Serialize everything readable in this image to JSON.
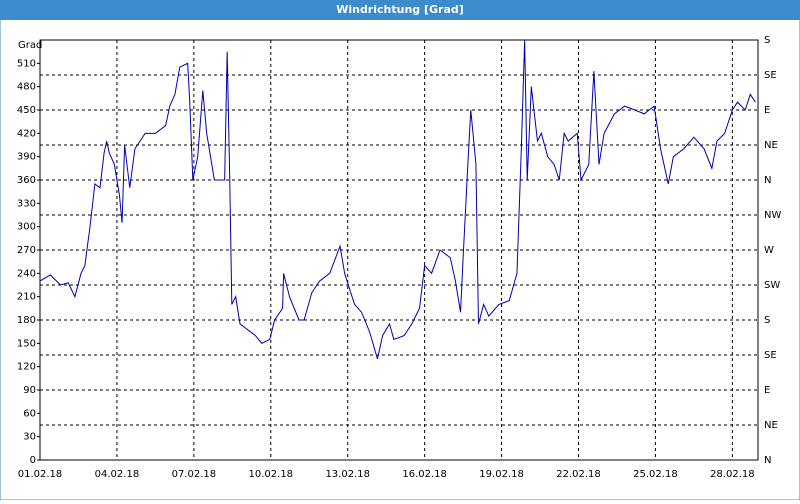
{
  "chart_data": {
    "type": "line",
    "title": "Windrichtung [Grad]",
    "ylabel": "Grad",
    "xlim": [
      0,
      28
    ],
    "xticks": [
      {
        "value": 0,
        "label": "01.02.18"
      },
      {
        "value": 3,
        "label": "04.02.18"
      },
      {
        "value": 6,
        "label": "07.02.18"
      },
      {
        "value": 9,
        "label": "10.02.18"
      },
      {
        "value": 12,
        "label": "13.02.18"
      },
      {
        "value": 15,
        "label": "16.02.18"
      },
      {
        "value": 18,
        "label": "19.02.18"
      },
      {
        "value": 21,
        "label": "22.02.18"
      },
      {
        "value": 24,
        "label": "25.02.18"
      },
      {
        "value": 27,
        "label": "28.02.18"
      }
    ],
    "ylim": [
      0,
      540
    ],
    "yticks": [
      0,
      30,
      60,
      90,
      120,
      150,
      180,
      210,
      240,
      270,
      300,
      330,
      360,
      390,
      420,
      450,
      480,
      510
    ],
    "y2lim": [
      0,
      540
    ],
    "y2ticks": [
      {
        "value": 0,
        "label": "N"
      },
      {
        "value": 45,
        "label": "NE"
      },
      {
        "value": 90,
        "label": "E"
      },
      {
        "value": 135,
        "label": "SE"
      },
      {
        "value": 180,
        "label": "S"
      },
      {
        "value": 225,
        "label": "SW"
      },
      {
        "value": 270,
        "label": "W"
      },
      {
        "value": 315,
        "label": "NW"
      },
      {
        "value": 360,
        "label": "N"
      },
      {
        "value": 405,
        "label": "NE"
      },
      {
        "value": 450,
        "label": "E"
      },
      {
        "value": 495,
        "label": "SE"
      },
      {
        "value": 540,
        "label": "S"
      }
    ],
    "grid": true,
    "x": [
      0,
      0.4,
      0.8,
      1.1,
      1.36,
      1.6,
      1.75,
      1.95,
      2.14,
      2.34,
      2.5,
      2.6,
      2.7,
      2.9,
      3.1,
      3.2,
      3.3,
      3.5,
      3.7,
      3.9,
      4.1,
      4.5,
      4.9,
      5.06,
      5.26,
      5.45,
      5.76,
      5.84,
      5.96,
      6.15,
      6.35,
      6.5,
      6.7,
      6.8,
      7.2,
      7.3,
      7.4,
      7.48,
      7.63,
      7.8,
      8.2,
      8.4,
      8.65,
      8.96,
      9.15,
      9.46,
      9.5,
      9.73,
      10.1,
      10.3,
      10.6,
      10.9,
      11.3,
      11.7,
      11.88,
      12.07,
      12.27,
      12.54,
      12.85,
      13.16,
      13.36,
      13.63,
      13.8,
      14.2,
      14.5,
      14.8,
      15,
      15.27,
      15.6,
      16,
      16.2,
      16.4,
      16.5,
      16.7,
      16.8,
      17,
      17.1,
      17.3,
      17.5,
      17.9,
      18.3,
      18.6,
      18.77,
      18.9,
      19,
      19.16,
      19.4,
      19.55,
      19.8,
      20.05,
      20.25,
      20.44,
      20.6,
      20.95,
      21.1,
      21.4,
      21.6,
      21.8,
      22,
      22.4,
      22.8,
      23.2,
      23.56,
      23.95,
      24.2,
      24.5,
      24.7,
      25.1,
      25.5,
      25.9,
      26.2,
      26.4,
      26.7,
      27,
      27.2,
      27.5,
      27.7,
      27.9
    ],
    "series": [
      {
        "name": "Windrichtung",
        "color": "#0000b0",
        "values": [
          230,
          238,
          225,
          228,
          210,
          240,
          250,
          300,
          355,
          350,
          395,
          410,
          395,
          380,
          340,
          305,
          405,
          350,
          400,
          410,
          420,
          420,
          430,
          455,
          470,
          505,
          510,
          460,
          360,
          390,
          475,
          420,
          380,
          360,
          360,
          525,
          360,
          200,
          210,
          175,
          165,
          160,
          150,
          155,
          180,
          195,
          240,
          210,
          180,
          180,
          215,
          230,
          240,
          275,
          240,
          220,
          200,
          190,
          165,
          130,
          160,
          175,
          155,
          160,
          175,
          195,
          250,
          240,
          270,
          260,
          230,
          190,
          260,
          390,
          450,
          380,
          175,
          200,
          185,
          200,
          205,
          240,
          400,
          540,
          360,
          480,
          410,
          420,
          390,
          380,
          360,
          420,
          410,
          420,
          360,
          380,
          500,
          380,
          420,
          445,
          455,
          450,
          445,
          455,
          400,
          355,
          390,
          400,
          415,
          400,
          375,
          410,
          420,
          450,
          460,
          450,
          470,
          460
        ]
      }
    ]
  }
}
